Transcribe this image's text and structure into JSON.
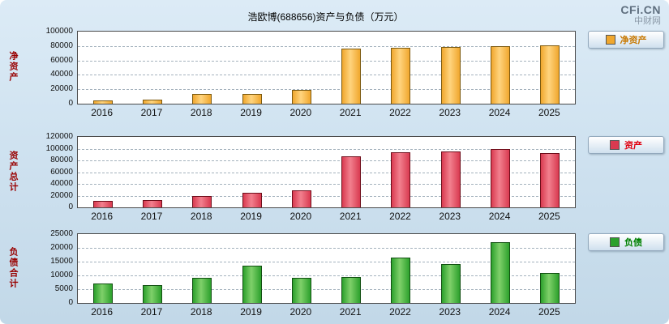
{
  "header": {
    "title": "浩欧博(688656)资产与负债（万元）",
    "watermark": "CFi.CN",
    "watermark_sub": "中财网"
  },
  "chart_data": [
    {
      "type": "bar",
      "title": "净资产",
      "ylabel": "净资产",
      "legend": "净资产",
      "xlabel": "",
      "categories": [
        "2016",
        "2017",
        "2018",
        "2019",
        "2020",
        "2021",
        "2022",
        "2023",
        "2024",
        "2025"
      ],
      "values": [
        5000,
        6000,
        13000,
        14000,
        19000,
        76000,
        77000,
        79000,
        80000,
        81000
      ],
      "ylim": [
        0,
        100000
      ],
      "yticks": [
        0,
        20000,
        40000,
        60000,
        80000,
        100000
      ],
      "grid": "dashed",
      "legend_position": "right",
      "colors": {
        "fill": "#f0a72e",
        "light": "#ffd47e",
        "dark": "#7c5a10",
        "legend_text": "#c87800"
      }
    },
    {
      "type": "bar",
      "title": "资产总计",
      "ylabel": "资产总计",
      "legend": "资产",
      "xlabel": "",
      "categories": [
        "2016",
        "2017",
        "2018",
        "2019",
        "2020",
        "2021",
        "2022",
        "2023",
        "2024",
        "2025"
      ],
      "values": [
        11000,
        13000,
        20000,
        25000,
        29000,
        87000,
        94000,
        95000,
        100000,
        93000
      ],
      "ylim": [
        0,
        120000
      ],
      "yticks": [
        0,
        20000,
        40000,
        60000,
        80000,
        100000,
        120000
      ],
      "grid": "dashed",
      "legend_position": "right",
      "colors": {
        "fill": "#d93a50",
        "light": "#f2808e",
        "dark": "#6e0d1a",
        "legend_text": "#e00010"
      }
    },
    {
      "type": "bar",
      "title": "负债合计",
      "ylabel": "负债合计",
      "legend": "负债",
      "xlabel": "",
      "categories": [
        "2016",
        "2017",
        "2018",
        "2019",
        "2020",
        "2021",
        "2022",
        "2023",
        "2024",
        "2025"
      ],
      "values": [
        7000,
        6500,
        9000,
        13500,
        9000,
        9500,
        16500,
        14000,
        22000,
        11000
      ],
      "ylim": [
        0,
        25000
      ],
      "yticks": [
        0,
        5000,
        10000,
        15000,
        20000,
        25000
      ],
      "grid": "dashed",
      "legend_position": "right",
      "colors": {
        "fill": "#2ca02c",
        "light": "#7fd06a",
        "dark": "#114f11",
        "legend_text": "#008000"
      }
    }
  ]
}
